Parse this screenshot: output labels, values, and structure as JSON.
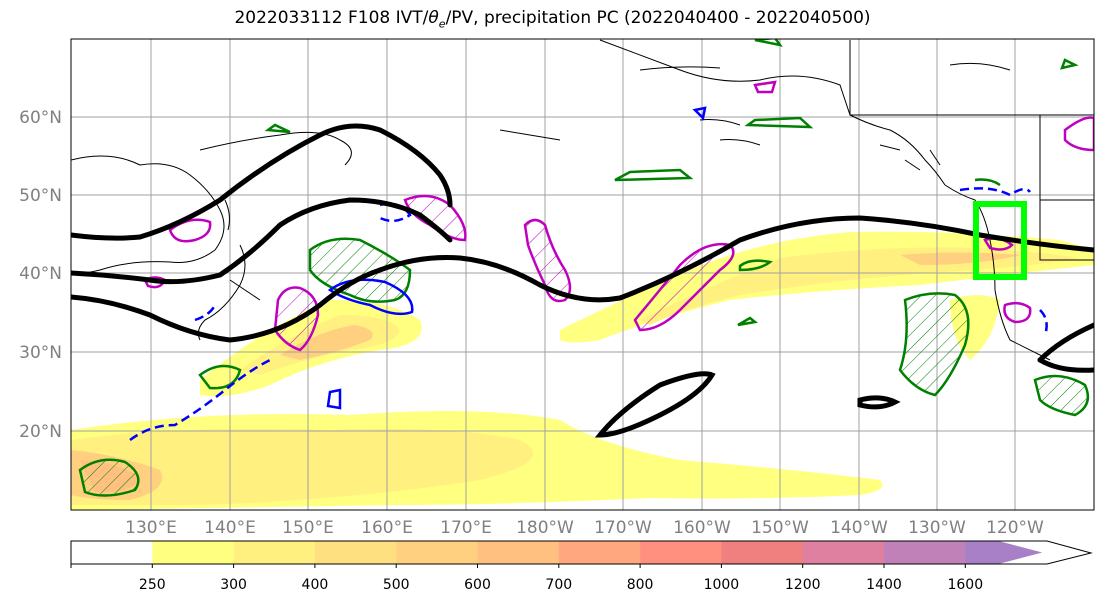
{
  "title": {
    "prefix": "2022033112 F108 IVT/",
    "theta": "θ",
    "sub": "e",
    "suffix": "/PV, precipitation PC (2022040400 - 2022040500)"
  },
  "map": {
    "lat_labels": [
      "60°N",
      "50°N",
      "40°N",
      "30°N",
      "20°N"
    ],
    "lon_labels": [
      "130°E",
      "140°E",
      "150°E",
      "160°E",
      "170°E",
      "180°W",
      "170°W",
      "160°W",
      "150°W",
      "140°W",
      "130°W",
      "120°W"
    ],
    "colors": {
      "coast": "#000000",
      "contour_thetae": "#000000",
      "pv": "#bf00bf",
      "precip": "#008000",
      "negative": "#0000ff",
      "highlight_box": "#00ff00",
      "gridline": "#a0a0a0"
    }
  },
  "colorbar": {
    "ticks": [
      "250",
      "300",
      "400",
      "500",
      "600",
      "700",
      "800",
      "1000",
      "1200",
      "1400",
      "1600"
    ],
    "colors": [
      "#ffffff",
      "#ffff80",
      "#fff080",
      "#ffe080",
      "#ffd080",
      "#ffc080",
      "#ffa880",
      "#ff9080",
      "#f08080",
      "#e080a0",
      "#c080b8",
      "#a880c8"
    ]
  }
}
